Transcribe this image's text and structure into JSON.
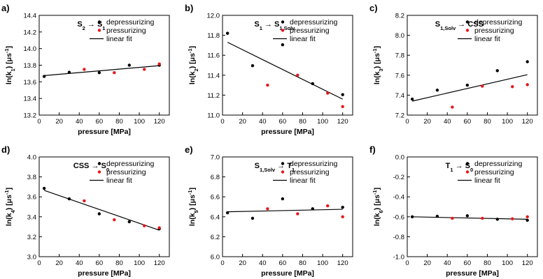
{
  "chart_data": [
    {
      "type": "scatter",
      "label": "a)",
      "title": "S",
      "title_parts": [
        [
          "S",
          "2"
        ],
        [
          "→",
          ""
        ],
        [
          "S",
          "1"
        ]
      ],
      "xlabel": "pressure [MPa]",
      "ylabel_parts": [
        [
          "ln(k",
          "1"
        ],
        [
          ") [μs",
          "-1"
        ],
        [
          "]",
          ""
        ]
      ],
      "xlim": [
        0,
        130
      ],
      "ylim": [
        13.2,
        14.4
      ],
      "xticks": [
        0,
        20,
        40,
        60,
        80,
        100,
        120
      ],
      "yticks": [
        13.2,
        13.4,
        13.6,
        13.8,
        14.0,
        14.2,
        14.4
      ],
      "tick_decimals": 1,
      "legend": [
        "depressurizing",
        "pressurizing",
        "linear fit"
      ],
      "legend_position": "top-right",
      "series": [
        {
          "name": "depressurizing",
          "color": "#000000",
          "x": [
            5,
            30,
            60,
            90,
            120
          ],
          "y": [
            13.665,
            13.715,
            13.71,
            13.8,
            13.8
          ]
        },
        {
          "name": "pressurizing",
          "color": "#e8161b",
          "x": [
            45,
            75,
            105,
            120
          ],
          "y": [
            13.75,
            13.71,
            13.75,
            13.815
          ]
        }
      ],
      "fit": {
        "x": [
          5,
          120
        ],
        "y": [
          13.675,
          13.795
        ]
      }
    },
    {
      "type": "scatter",
      "label": "b)",
      "title": "S",
      "title_parts": [
        [
          "S",
          "1"
        ],
        [
          "→",
          ""
        ],
        [
          "S",
          "1,Solv"
        ]
      ],
      "xlabel": "pressure [MPa]",
      "ylabel_parts": [
        [
          "ln(k",
          "2"
        ],
        [
          ") [μs",
          "-1"
        ],
        [
          "]",
          ""
        ]
      ],
      "xlim": [
        0,
        130
      ],
      "ylim": [
        11.0,
        12.0
      ],
      "xticks": [
        0,
        20,
        40,
        60,
        80,
        100,
        120
      ],
      "yticks": [
        11.0,
        11.2,
        11.4,
        11.6,
        11.8,
        12.0
      ],
      "tick_decimals": 1,
      "legend": [
        "depressurizing",
        "pressurizing",
        "linear fit"
      ],
      "legend_position": "top-right",
      "series": [
        {
          "name": "depressurizing",
          "color": "#000000",
          "x": [
            5,
            30,
            60,
            90,
            120
          ],
          "y": [
            11.82,
            11.495,
            11.705,
            11.315,
            11.205
          ]
        },
        {
          "name": "pressurizing",
          "color": "#e8161b",
          "x": [
            45,
            75,
            105,
            120
          ],
          "y": [
            11.3,
            11.4,
            11.22,
            11.085
          ]
        }
      ],
      "fit": {
        "x": [
          5,
          120
        ],
        "y": [
          11.73,
          11.16
        ]
      }
    },
    {
      "type": "scatter",
      "label": "c)",
      "title": "S",
      "title_parts": [
        [
          "S",
          "1,Solv"
        ],
        [
          "→",
          ""
        ],
        [
          "CSS",
          ""
        ]
      ],
      "xlabel": "",
      "ylabel_parts": [
        [
          "ln(k",
          "3"
        ],
        [
          ") [μs",
          "-1"
        ],
        [
          "]",
          ""
        ]
      ],
      "xlim": [
        0,
        130
      ],
      "ylim": [
        7.2,
        8.2
      ],
      "xticks": [
        0,
        20,
        40,
        60,
        80,
        100,
        120
      ],
      "yticks": [
        7.2,
        7.4,
        7.6,
        7.8,
        8.0,
        8.2
      ],
      "tick_decimals": 1,
      "legend": [
        "depressurizing",
        "pressurizing",
        "linear fit"
      ],
      "legend_position": "top-right",
      "series": [
        {
          "name": "depressurizing",
          "color": "#000000",
          "x": [
            5,
            30,
            60,
            90,
            120
          ],
          "y": [
            7.36,
            7.45,
            7.5,
            7.645,
            7.735
          ]
        },
        {
          "name": "pressurizing",
          "color": "#e8161b",
          "x": [
            45,
            75,
            105,
            120
          ],
          "y": [
            7.28,
            7.49,
            7.485,
            7.505
          ]
        }
      ],
      "fit": {
        "x": [
          5,
          120
        ],
        "y": [
          7.34,
          7.605
        ]
      }
    },
    {
      "type": "scatter",
      "label": "d)",
      "title": "CSS",
      "title_parts": [
        [
          "CSS",
          ""
        ],
        [
          "→",
          ""
        ],
        [
          "S",
          "0"
        ]
      ],
      "xlabel": "pressure [MPa]",
      "ylabel_parts": [
        [
          "ln(k",
          "4"
        ],
        [
          ") [μs",
          "-1"
        ],
        [
          "]",
          ""
        ]
      ],
      "xlim": [
        0,
        130
      ],
      "ylim": [
        3.0,
        4.0
      ],
      "xticks": [
        0,
        20,
        40,
        60,
        80,
        100,
        120
      ],
      "yticks": [
        3.0,
        3.2,
        3.4,
        3.6,
        3.8,
        4.0
      ],
      "tick_decimals": 1,
      "legend": [
        "depressurizing",
        "pressurizing",
        "linear fit"
      ],
      "legend_position": "top-right",
      "series": [
        {
          "name": "depressurizing",
          "color": "#000000",
          "x": [
            5,
            30,
            60,
            90,
            120
          ],
          "y": [
            3.685,
            3.58,
            3.43,
            3.35,
            3.28
          ]
        },
        {
          "name": "pressurizing",
          "color": "#e8161b",
          "x": [
            45,
            75,
            105,
            120
          ],
          "y": [
            3.56,
            3.37,
            3.31,
            3.29
          ]
        }
      ],
      "fit": {
        "x": [
          5,
          120
        ],
        "y": [
          3.665,
          3.265
        ]
      }
    },
    {
      "type": "scatter",
      "label": "e)",
      "title": "S",
      "title_parts": [
        [
          "S",
          "1,Solv"
        ],
        [
          "→",
          ""
        ],
        [
          "T",
          "1"
        ]
      ],
      "xlabel": "pressure [MPa]",
      "ylabel_parts": [
        [
          "ln(k",
          "5"
        ],
        [
          ") [μs",
          "-1"
        ],
        [
          "]",
          ""
        ]
      ],
      "xlim": [
        0,
        130
      ],
      "ylim": [
        6.0,
        7.0
      ],
      "xticks": [
        0,
        20,
        40,
        60,
        80,
        100,
        120
      ],
      "yticks": [
        6.0,
        6.2,
        6.4,
        6.6,
        6.8,
        7.0
      ],
      "tick_decimals": 1,
      "legend": [
        "depressurizing",
        "pressurizing",
        "linear fit"
      ],
      "legend_position": "top-right",
      "series": [
        {
          "name": "depressurizing",
          "color": "#000000",
          "x": [
            5,
            30,
            60,
            90,
            120
          ],
          "y": [
            6.44,
            6.385,
            6.58,
            6.48,
            6.495
          ]
        },
        {
          "name": "pressurizing",
          "color": "#e8161b",
          "x": [
            45,
            75,
            105,
            120
          ],
          "y": [
            6.48,
            6.43,
            6.51,
            6.4
          ]
        }
      ],
      "fit": {
        "x": [
          5,
          120
        ],
        "y": [
          6.45,
          6.475
        ]
      }
    },
    {
      "type": "scatter",
      "label": "f)",
      "title": "T",
      "title_parts": [
        [
          "T",
          "1"
        ],
        [
          "→",
          ""
        ],
        [
          "S",
          "0"
        ]
      ],
      "xlabel": "pressure [MPa]",
      "ylabel_parts": [
        [
          "ln(k",
          "6"
        ],
        [
          ") [μs",
          "-1"
        ],
        [
          "]",
          ""
        ]
      ],
      "xlim": [
        0,
        130
      ],
      "ylim": [
        -1.0,
        0.0
      ],
      "xticks": [
        0,
        20,
        40,
        60,
        80,
        100,
        120
      ],
      "yticks": [
        -1.0,
        -0.8,
        -0.6,
        -0.4,
        -0.2,
        0.0
      ],
      "tick_decimals": 1,
      "legend": [
        "depressurizing",
        "pressurizing",
        "linear fit"
      ],
      "legend_position": "top-right",
      "series": [
        {
          "name": "depressurizing",
          "color": "#000000",
          "x": [
            5,
            30,
            60,
            90,
            120
          ],
          "y": [
            -0.6,
            -0.595,
            -0.59,
            -0.625,
            -0.635
          ]
        },
        {
          "name": "pressurizing",
          "color": "#e8161b",
          "x": [
            45,
            75,
            105,
            120
          ],
          "y": [
            -0.615,
            -0.615,
            -0.62,
            -0.6
          ]
        }
      ],
      "fit": {
        "x": [
          5,
          120
        ],
        "y": [
          -0.6,
          -0.625
        ]
      }
    }
  ]
}
